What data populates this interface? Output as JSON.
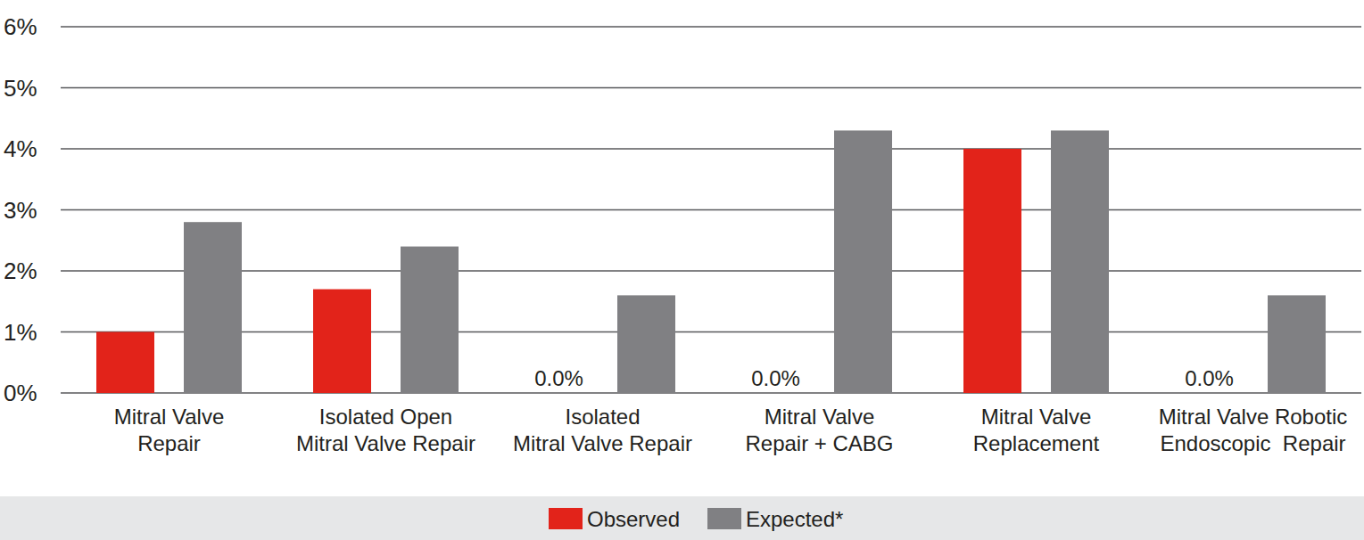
{
  "chart_data": {
    "type": "bar",
    "categories": [
      "Mitral Valve\nRepair",
      "Isolated Open\nMitral Valve Repair",
      "Isolated\nMitral Valve Repair",
      "Mitral Valve\nRepair + CABG",
      "Mitral Valve\nReplacement",
      "Mitral Valve Robotic\nEndoscopic  Repair"
    ],
    "series": [
      {
        "name": "Observed",
        "color": "#e2231a",
        "values": [
          1.0,
          1.7,
          0,
          0,
          4.0,
          0
        ],
        "value_labels": [
          null,
          null,
          "0.0%",
          "0.0%",
          null,
          "0.0%"
        ]
      },
      {
        "name": "Expected*",
        "color": "#808083",
        "values": [
          2.8,
          2.4,
          1.6,
          4.3,
          4.3,
          1.6
        ]
      }
    ],
    "ylim": [
      0,
      6
    ],
    "yticks": [
      {
        "value": 0,
        "label": "0%"
      },
      {
        "value": 1,
        "label": "1%"
      },
      {
        "value": 2,
        "label": "2%"
      },
      {
        "value": 3,
        "label": "3%"
      },
      {
        "value": 4,
        "label": "4%"
      },
      {
        "value": 5,
        "label": "5%"
      },
      {
        "value": 6,
        "label": "6%"
      }
    ],
    "grid": true,
    "legend": "bottom",
    "data_labels": true
  }
}
